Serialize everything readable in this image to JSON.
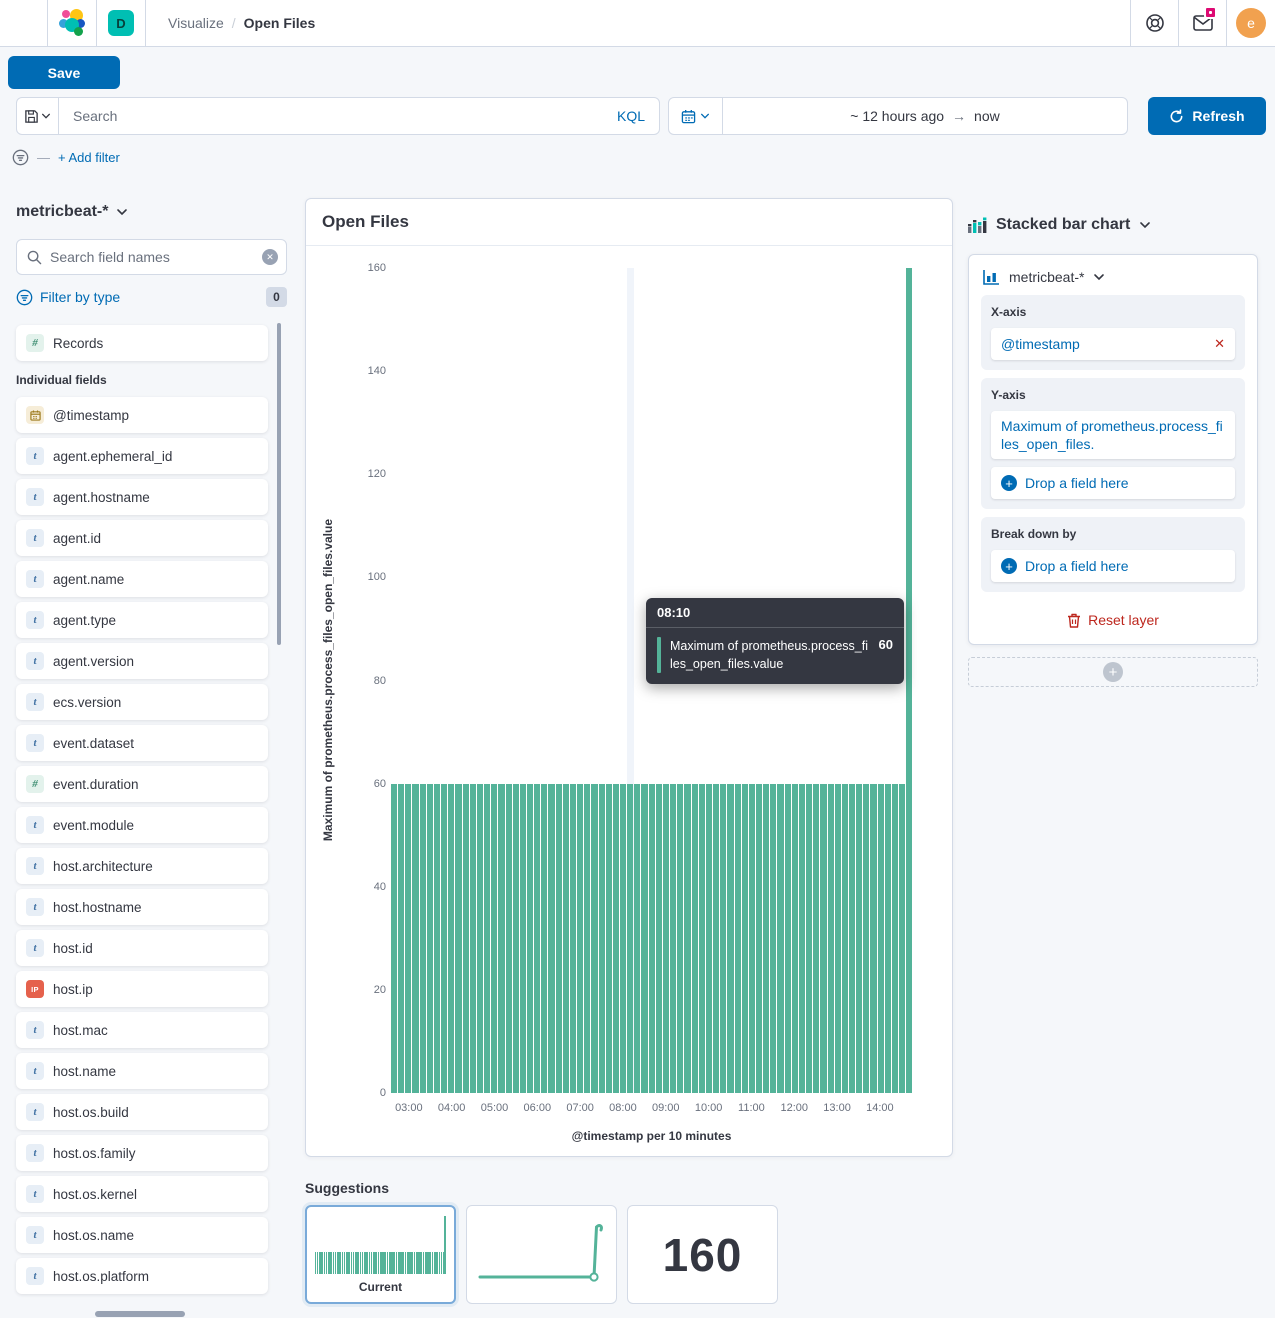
{
  "header": {
    "breadcrumb": {
      "section": "Visualize",
      "separator": "/",
      "current": "Open Files"
    },
    "space_initial": "D",
    "avatar_initial": "e"
  },
  "toolbar": {
    "save_label": "Save"
  },
  "query_bar": {
    "search_placeholder": "Search",
    "language": "KQL",
    "time_from": "~ 12 hours ago",
    "time_to": "now",
    "refresh_label": "Refresh"
  },
  "filter_bar": {
    "add_filter_label": "+ Add filter"
  },
  "sidebar": {
    "index_pattern": "metricbeat-*",
    "search_placeholder": "Search field names",
    "filter_by_type_label": "Filter by type",
    "filter_count": "0",
    "records_label": "Records",
    "individual_fields_label": "Individual fields",
    "fields": [
      {
        "name": "@timestamp",
        "type": "date"
      },
      {
        "name": "agent.ephemeral_id",
        "type": "string"
      },
      {
        "name": "agent.hostname",
        "type": "string"
      },
      {
        "name": "agent.id",
        "type": "string"
      },
      {
        "name": "agent.name",
        "type": "string"
      },
      {
        "name": "agent.type",
        "type": "string"
      },
      {
        "name": "agent.version",
        "type": "string"
      },
      {
        "name": "ecs.version",
        "type": "string"
      },
      {
        "name": "event.dataset",
        "type": "string"
      },
      {
        "name": "event.duration",
        "type": "number"
      },
      {
        "name": "event.module",
        "type": "string"
      },
      {
        "name": "host.architecture",
        "type": "string"
      },
      {
        "name": "host.hostname",
        "type": "string"
      },
      {
        "name": "host.id",
        "type": "string"
      },
      {
        "name": "host.ip",
        "type": "ip"
      },
      {
        "name": "host.mac",
        "type": "string"
      },
      {
        "name": "host.name",
        "type": "string"
      },
      {
        "name": "host.os.build",
        "type": "string"
      },
      {
        "name": "host.os.family",
        "type": "string"
      },
      {
        "name": "host.os.kernel",
        "type": "string"
      },
      {
        "name": "host.os.name",
        "type": "string"
      },
      {
        "name": "host.os.platform",
        "type": "string"
      }
    ]
  },
  "chart_panel": {
    "title": "Open Files"
  },
  "chart_data": {
    "type": "bar",
    "title": "Open Files",
    "xlabel": "@timestamp per 10 minutes",
    "ylabel": "Maximum of prometheus.process_files_open_files.value",
    "ylim": [
      0,
      160
    ],
    "y_ticks": [
      0,
      20,
      40,
      60,
      80,
      100,
      120,
      140,
      160
    ],
    "x_ticks": [
      "03:00",
      "04:00",
      "05:00",
      "06:00",
      "07:00",
      "08:00",
      "09:00",
      "10:00",
      "11:00",
      "12:00",
      "13:00",
      "14:00"
    ],
    "x_start": "02:40",
    "interval": "10 minutes",
    "tick_first_slot": 2,
    "tick_slot_step": 6,
    "grid": "off",
    "legend": "none",
    "series_name": "Maximum of prometheus.process_files_open_files.value",
    "bar_color": "#54B399",
    "highlight_index": 33,
    "values": [
      60,
      60,
      60,
      60,
      60,
      60,
      60,
      60,
      60,
      60,
      60,
      60,
      60,
      60,
      60,
      60,
      60,
      60,
      60,
      60,
      60,
      60,
      60,
      60,
      60,
      60,
      60,
      60,
      60,
      60,
      60,
      60,
      60,
      60,
      60,
      60,
      60,
      60,
      60,
      60,
      60,
      60,
      60,
      60,
      60,
      60,
      60,
      60,
      60,
      60,
      60,
      60,
      60,
      60,
      60,
      60,
      60,
      60,
      60,
      60,
      60,
      60,
      60,
      60,
      60,
      60,
      60,
      60,
      60,
      60,
      60,
      60,
      160
    ]
  },
  "tooltip": {
    "time": "08:10",
    "label": "Maximum of prometheus.process_files_open_files.value",
    "value": "60"
  },
  "config_panel": {
    "chart_type_label": "Stacked bar chart",
    "layer": {
      "index_pattern": "metricbeat-*",
      "x_axis_label": "X-axis",
      "x_axis_value": "@timestamp",
      "y_axis_label": "Y-axis",
      "y_axis_value": "Maximum of prometheus.process_files_open_files.",
      "drop_label": "Drop a field here",
      "breakdown_label": "Break down by",
      "reset_label": "Reset layer"
    }
  },
  "suggestions": {
    "title": "Suggestions",
    "current_label": "Current",
    "metric_value": "160"
  },
  "colors": {
    "primary": "#006BB4",
    "bar_green": "#54B399",
    "accent_pink": "#DD0A73",
    "teal_badge": "#00BFB3",
    "danger": "#BD271E",
    "text": "#343741",
    "subdued_text": "#69707D",
    "border": "#D3DAE6",
    "page_bg": "#F5F7FA",
    "tooltip_bg": "#343741"
  }
}
